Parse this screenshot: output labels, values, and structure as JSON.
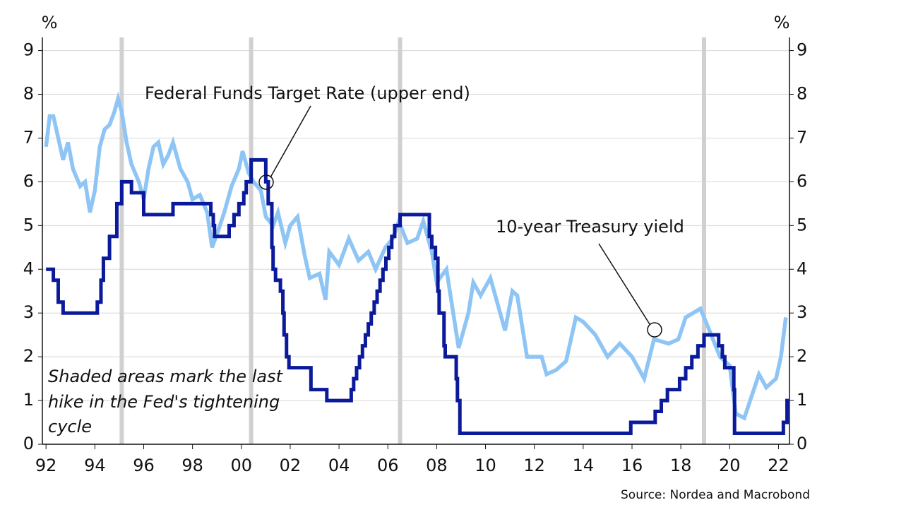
{
  "chart_data": {
    "type": "line",
    "y_label": "%",
    "y2_label": "%",
    "annotations": [
      "Federal Funds Target Rate (upper end)",
      "10-year Treasury yield"
    ],
    "note": [
      "Shaded areas mark the last",
      "hike in the Fed's tightening",
      "cycle"
    ],
    "source": "Source: Nordea and Macrobond",
    "xlim": [
      1991.85,
      2022.45
    ],
    "xticks": [
      {
        "value": 1992,
        "label": "92"
      },
      {
        "value": 1994,
        "label": "94"
      },
      {
        "value": 1996,
        "label": "96"
      },
      {
        "value": 1998,
        "label": "98"
      },
      {
        "value": 2000,
        "label": "00"
      },
      {
        "value": 2002,
        "label": "02"
      },
      {
        "value": 2004,
        "label": "04"
      },
      {
        "value": 2006,
        "label": "06"
      },
      {
        "value": 2008,
        "label": "08"
      },
      {
        "value": 2010,
        "label": "10"
      },
      {
        "value": 2012,
        "label": "12"
      },
      {
        "value": 2014,
        "label": "14"
      },
      {
        "value": 2016,
        "label": "16"
      },
      {
        "value": 2018,
        "label": "18"
      },
      {
        "value": 2020,
        "label": "20"
      },
      {
        "value": 2022,
        "label": "22"
      }
    ],
    "ylim": [
      0,
      9.3
    ],
    "yticks": [
      0,
      1,
      2,
      3,
      4,
      5,
      6,
      7,
      8,
      9
    ],
    "y2lim": [
      0,
      9.3
    ],
    "y2ticks": [
      0,
      1,
      2,
      3,
      4,
      5,
      6,
      7,
      8,
      9
    ],
    "grid": true,
    "shaded": [
      1995.1,
      2000.4,
      2006.5,
      2018.95
    ],
    "shade_color": "#d0d0d0",
    "series": [
      {
        "name": "10-year Treasury yield",
        "color": "#8ec5f5",
        "step": false,
        "x": [
          1992.0,
          1992.15,
          1992.3,
          1992.5,
          1992.7,
          1992.9,
          1993.1,
          1993.4,
          1993.6,
          1993.8,
          1994.0,
          1994.2,
          1994.4,
          1994.6,
          1994.8,
          1994.95,
          1995.1,
          1995.3,
          1995.5,
          1995.8,
          1996.0,
          1996.2,
          1996.4,
          1996.6,
          1996.8,
          1997.0,
          1997.2,
          1997.5,
          1997.8,
          1998.0,
          1998.3,
          1998.6,
          1998.8,
          1999.0,
          1999.3,
          1999.6,
          1999.9,
          2000.05,
          2000.3,
          2000.5,
          2000.8,
          2001.0,
          2001.3,
          2001.5,
          2001.8,
          2002.0,
          2002.3,
          2002.6,
          2002.8,
          2003.2,
          2003.45,
          2003.6,
          2004.0,
          2004.4,
          2004.8,
          2005.2,
          2005.5,
          2005.9,
          2006.2,
          2006.45,
          2006.8,
          2007.2,
          2007.45,
          2007.8,
          2008.0,
          2008.4,
          2008.9,
          2009.3,
          2009.5,
          2009.8,
          2010.2,
          2010.8,
          2011.1,
          2011.3,
          2011.7,
          2012.3,
          2012.5,
          2012.9,
          2013.3,
          2013.7,
          2014.0,
          2014.5,
          2015.0,
          2015.5,
          2016.0,
          2016.5,
          2016.9,
          2017.5,
          2017.9,
          2018.2,
          2018.8,
          2019.1,
          2019.6,
          2020.0,
          2020.25,
          2020.6,
          2021.2,
          2021.5,
          2021.9,
          2022.1,
          2022.3
        ],
        "values": [
          6.8,
          7.5,
          7.5,
          7.0,
          6.5,
          6.9,
          6.3,
          5.9,
          6.0,
          5.3,
          5.8,
          6.8,
          7.2,
          7.3,
          7.6,
          7.9,
          7.6,
          6.9,
          6.4,
          6.0,
          5.6,
          6.3,
          6.8,
          6.9,
          6.4,
          6.6,
          6.9,
          6.3,
          6.0,
          5.6,
          5.7,
          5.3,
          4.5,
          4.8,
          5.3,
          5.9,
          6.3,
          6.7,
          6.2,
          6.0,
          5.8,
          5.2,
          5.0,
          5.3,
          4.6,
          5.0,
          5.2,
          4.3,
          3.8,
          3.9,
          3.3,
          4.4,
          4.1,
          4.7,
          4.2,
          4.4,
          4.0,
          4.5,
          4.7,
          5.1,
          4.6,
          4.7,
          5.1,
          4.4,
          3.7,
          4.0,
          2.2,
          3.0,
          3.7,
          3.4,
          3.8,
          2.6,
          3.5,
          3.4,
          2.0,
          2.0,
          1.6,
          1.7,
          1.9,
          2.9,
          2.8,
          2.5,
          2.0,
          2.3,
          2.0,
          1.5,
          2.4,
          2.3,
          2.4,
          2.9,
          3.1,
          2.7,
          2.0,
          1.8,
          0.7,
          0.6,
          1.6,
          1.3,
          1.5,
          2.0,
          2.9
        ]
      },
      {
        "name": "Federal Funds Target Rate (upper end)",
        "color": "#0a1a9a",
        "step": true,
        "x": [
          1992.0,
          1992.3,
          1992.5,
          1992.7,
          1994.1,
          1994.25,
          1994.35,
          1994.6,
          1994.9,
          1995.1,
          1995.5,
          1996.0,
          1997.2,
          1998.75,
          1998.85,
          1998.9,
          1999.5,
          1999.7,
          1999.9,
          2000.1,
          2000.2,
          2000.4,
          2001.0,
          2001.1,
          2001.25,
          2001.3,
          2001.4,
          2001.6,
          2001.7,
          2001.75,
          2001.85,
          2001.95,
          2002.85,
          2003.5,
          2004.5,
          2004.6,
          2004.72,
          2004.84,
          2004.96,
          2005.08,
          2005.2,
          2005.32,
          2005.44,
          2005.56,
          2005.68,
          2005.8,
          2005.92,
          2006.04,
          2006.16,
          2006.28,
          2006.5,
          2007.7,
          2007.8,
          2007.95,
          2008.05,
          2008.1,
          2008.3,
          2008.35,
          2008.8,
          2008.85,
          2008.95,
          2015.95,
          2016.95,
          2017.2,
          2017.45,
          2017.95,
          2018.2,
          2018.45,
          2018.7,
          2018.95,
          2019.55,
          2019.7,
          2019.8,
          2020.17,
          2020.2,
          2022.2,
          2022.35,
          2022.42
        ],
        "values": [
          4.0,
          3.75,
          3.25,
          3.0,
          3.25,
          3.75,
          4.25,
          4.75,
          5.5,
          6.0,
          5.75,
          5.25,
          5.5,
          5.25,
          5.0,
          4.75,
          5.0,
          5.25,
          5.5,
          5.75,
          6.0,
          6.5,
          6.0,
          5.5,
          4.5,
          4.0,
          3.75,
          3.5,
          3.0,
          2.5,
          2.0,
          1.75,
          1.25,
          1.0,
          1.25,
          1.5,
          1.75,
          2.0,
          2.25,
          2.5,
          2.75,
          3.0,
          3.25,
          3.5,
          3.75,
          4.0,
          4.25,
          4.5,
          4.75,
          5.0,
          5.25,
          4.75,
          4.5,
          4.25,
          3.5,
          3.0,
          2.25,
          2.0,
          1.5,
          1.0,
          0.25,
          0.5,
          0.75,
          1.0,
          1.25,
          1.5,
          1.75,
          2.0,
          2.25,
          2.5,
          2.25,
          2.0,
          1.75,
          1.25,
          0.25,
          0.5,
          1.0,
          1.0
        ]
      }
    ]
  }
}
